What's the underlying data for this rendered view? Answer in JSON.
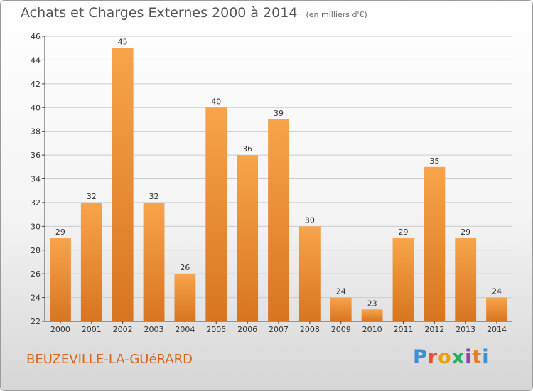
{
  "header": {
    "title": "Achats et Charges Externes 2000 à 2014",
    "unit": "(en milliers d'€)"
  },
  "footer": {
    "place": "BEUZEVILLE-LA-GUéRARD",
    "logo_letters": [
      "P",
      "r",
      "o",
      "x",
      "i",
      "t",
      "i"
    ]
  },
  "colors": {
    "bar_top": "#f7a44b",
    "bar_bottom": "#d87520",
    "grid": "#cccccc",
    "place_text": "#d9661c"
  },
  "chart_data": {
    "type": "bar",
    "title": "Achats et Charges Externes 2000 à 2014",
    "subtitle": "(en milliers d'€)",
    "categories": [
      "2000",
      "2001",
      "2002",
      "2003",
      "2004",
      "2005",
      "2006",
      "2007",
      "2008",
      "2009",
      "2010",
      "2011",
      "2012",
      "2013",
      "2014"
    ],
    "values": [
      29,
      32,
      45,
      32,
      26,
      40,
      36,
      39,
      30,
      24,
      23,
      29,
      35,
      29,
      24
    ],
    "ylim": [
      22,
      46
    ],
    "yticks": [
      22,
      24,
      26,
      28,
      30,
      32,
      34,
      36,
      38,
      40,
      42,
      44,
      46
    ],
    "grid": true,
    "data_labels": true
  }
}
